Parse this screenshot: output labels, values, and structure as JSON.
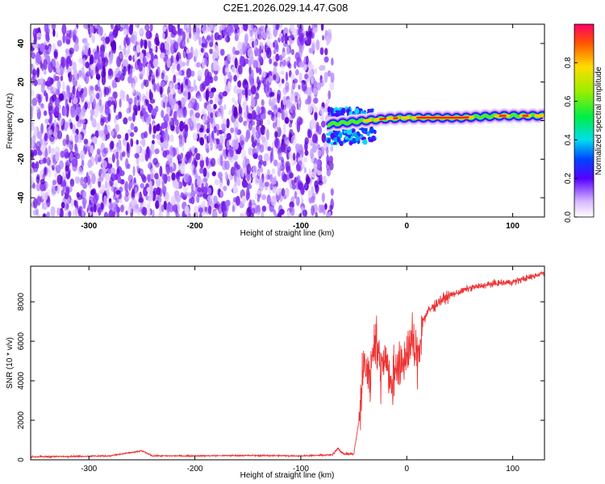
{
  "title": "C2E1.2026.029.14.47.G08",
  "chart_data": [
    {
      "type": "heatmap",
      "xlabel": "Height of straight line (km)",
      "ylabel": "Frequency (Hz)",
      "xlim": [
        -355,
        130
      ],
      "ylim": [
        -50,
        50
      ],
      "xticks": [
        -300,
        -200,
        -100,
        0,
        100
      ],
      "yticks": [
        -40,
        -20,
        0,
        20,
        40
      ],
      "colorbar": {
        "label": "Normalized spectral amplitude",
        "range": [
          0,
          1
        ],
        "ticks": [
          0.0,
          0.2,
          0.4,
          0.6,
          0.8
        ]
      },
      "noise_region_x": [
        -355,
        -70
      ],
      "signal_band": {
        "x": [
          -75,
          -20,
          0,
          50,
          90,
          130
        ],
        "center_hz": [
          -2,
          1,
          1.5,
          1.5,
          2.5,
          2.5
        ],
        "peak_amplitude": [
          0.35,
          0.65,
          0.95,
          1.0,
          0.95,
          0.9
        ]
      }
    },
    {
      "type": "line",
      "xlabel": "Height of straight line (km)",
      "ylabel": "SNR (10 * v/v)",
      "xlim": [
        -355,
        130
      ],
      "ylim": [
        0,
        9800
      ],
      "xticks": [
        -300,
        -200,
        -100,
        0,
        100
      ],
      "yticks": [
        0,
        2000,
        4000,
        6000,
        8000
      ],
      "color": "#ee3333",
      "x": [
        -355,
        -320,
        -280,
        -250,
        -240,
        -200,
        -150,
        -100,
        -70,
        -65,
        -60,
        -50,
        -45,
        -40,
        -35,
        -30,
        -25,
        -20,
        -15,
        -10,
        -5,
        0,
        5,
        10,
        15,
        20,
        30,
        40,
        60,
        80,
        100,
        120,
        130
      ],
      "y": [
        150,
        170,
        200,
        450,
        200,
        200,
        220,
        200,
        250,
        600,
        300,
        300,
        2000,
        5000,
        4000,
        6500,
        4500,
        5500,
        3500,
        5000,
        4500,
        5500,
        6000,
        5000,
        7000,
        7500,
        8000,
        8300,
        8700,
        8900,
        9000,
        9300,
        9500
      ]
    }
  ]
}
